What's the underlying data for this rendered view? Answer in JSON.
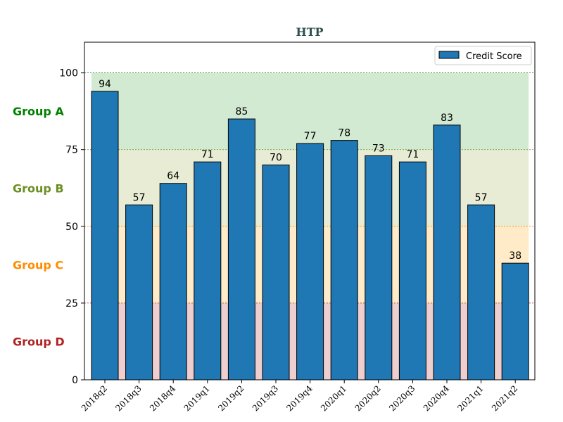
{
  "chart_data": {
    "type": "bar",
    "title": "HTP",
    "xlabel": "",
    "ylabel": "",
    "ylim": [
      0,
      110
    ],
    "yticks": [
      0,
      25,
      50,
      75,
      100
    ],
    "categories": [
      "2018q2",
      "2018q3",
      "2018q4",
      "2019q1",
      "2019q2",
      "2019q3",
      "2019q4",
      "2020q1",
      "2020q2",
      "2020q3",
      "2020q4",
      "2021q1",
      "2021q2"
    ],
    "series": [
      {
        "name": "Credit Score",
        "color": "#1f77b4",
        "values": [
          94,
          57,
          64,
          71,
          85,
          70,
          77,
          78,
          73,
          71,
          83,
          57,
          38
        ]
      }
    ],
    "legend": {
      "position": "top-right"
    },
    "grid": false,
    "bands": [
      {
        "label": "Group A",
        "from": 75,
        "to": 100,
        "fill": "#2ca02c",
        "label_color": "#008000",
        "line_color": "#008000"
      },
      {
        "label": "Group B",
        "from": 50,
        "to": 75,
        "fill": "#9aa83a",
        "label_color": "#6b8e23",
        "line_color": "#6b8e23"
      },
      {
        "label": "Group C",
        "from": 25,
        "to": 50,
        "fill": "#ffa500",
        "label_color": "#ff8c00",
        "line_color": "#ff8c00"
      },
      {
        "label": "Group D",
        "from": 0,
        "to": 25,
        "fill": "#b22222",
        "label_color": "#b22222",
        "line_color": "#b22222"
      }
    ]
  }
}
